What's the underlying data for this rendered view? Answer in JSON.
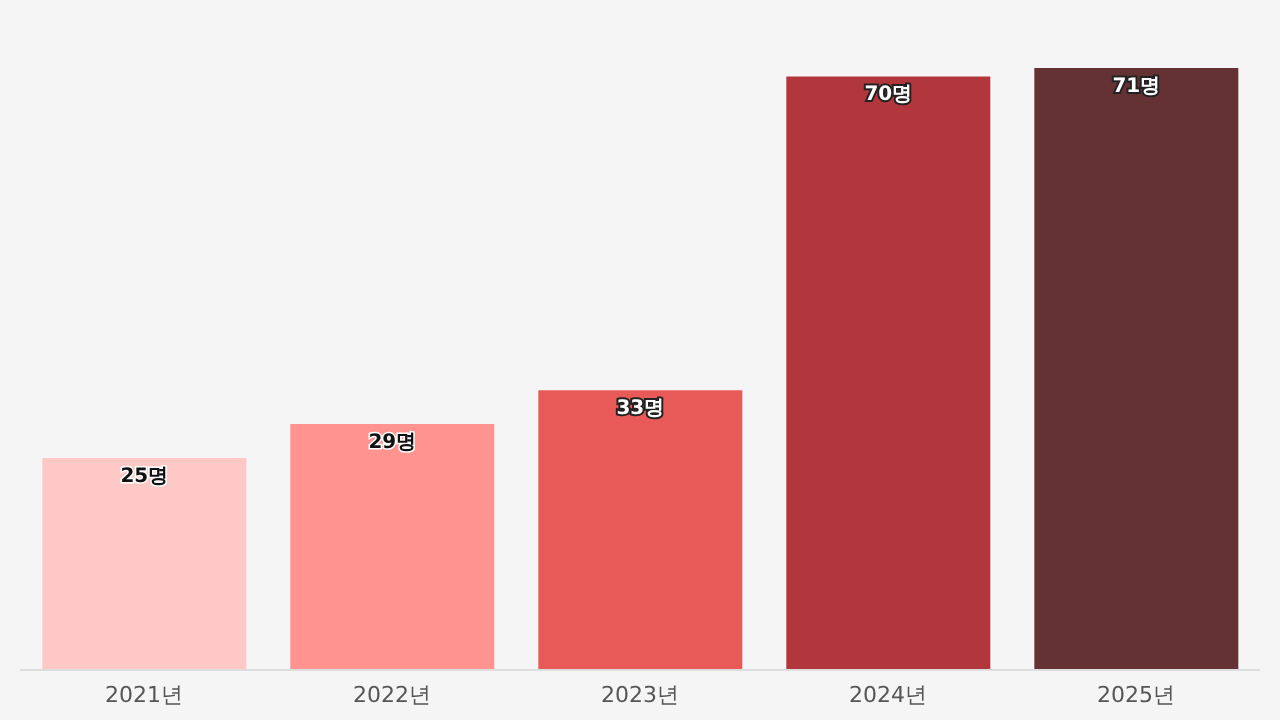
{
  "chart_data": {
    "type": "bar",
    "categories": [
      "2021년",
      "2022년",
      "2023년",
      "2024년",
      "2025년"
    ],
    "values": [
      25,
      29,
      33,
      70,
      71
    ],
    "colors": [
      "#fdc8c5",
      "#fe9390",
      "#e85a57",
      "#b2373c",
      "#653234"
    ],
    "value_labels": [
      "25명",
      "29명",
      "33명",
      "70명",
      "71명"
    ],
    "grid": false,
    "legend": false
  }
}
